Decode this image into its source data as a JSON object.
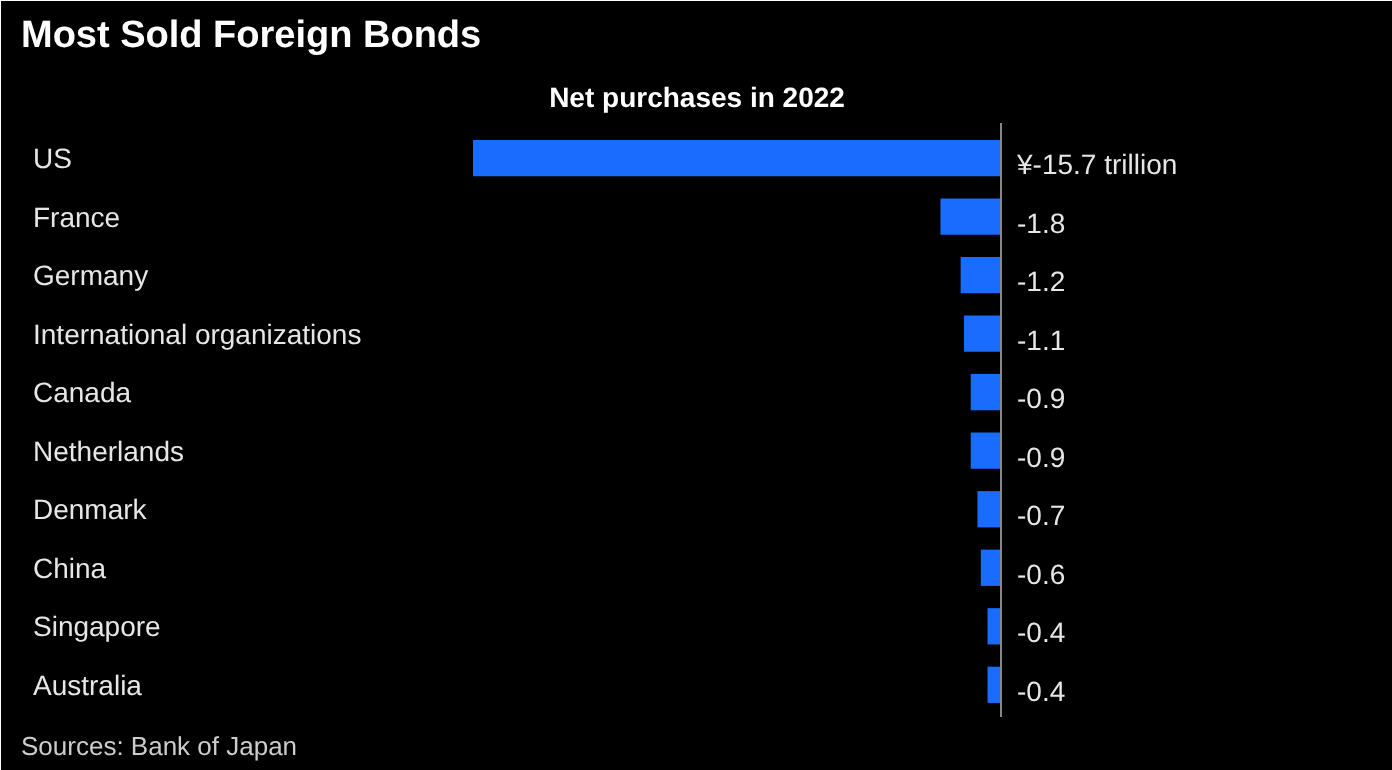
{
  "chart_data": {
    "type": "bar",
    "orientation": "horizontal",
    "title": "Most Sold Foreign Bonds",
    "subtitle": "Net purchases in 2022",
    "categories": [
      "US",
      "France",
      "Germany",
      "International organizations",
      "Canada",
      "Netherlands",
      "Denmark",
      "China",
      "Singapore",
      "Australia"
    ],
    "values": [
      -15.7,
      -1.8,
      -1.2,
      -1.1,
      -0.9,
      -0.9,
      -0.7,
      -0.6,
      -0.4,
      -0.4
    ],
    "value_labels": [
      "¥-15.7 trillion",
      "-1.8",
      "-1.2",
      "-1.1",
      "-0.9",
      "-0.9",
      "-0.7",
      "-0.6",
      "-0.4",
      "-0.4"
    ],
    "color": "#1a6cff",
    "annotations": [
      "Sources: Bank of Japan"
    ]
  }
}
